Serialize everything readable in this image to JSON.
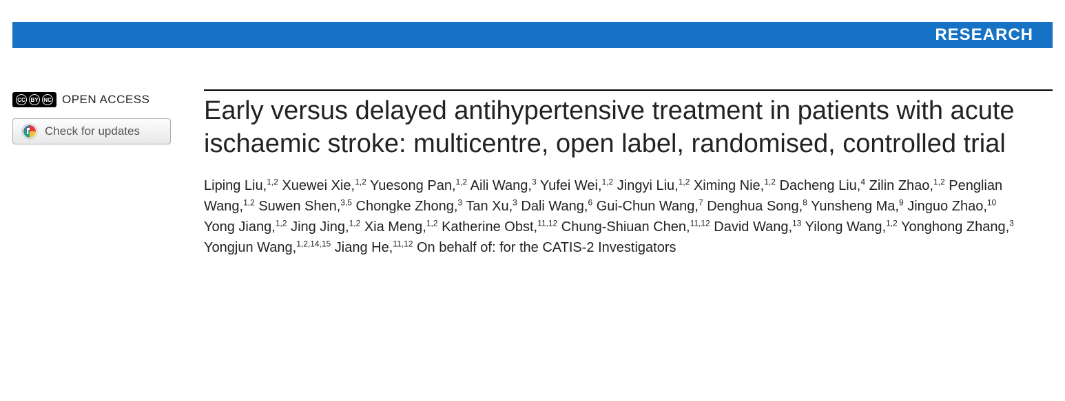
{
  "banner": {
    "label": "RESEARCH",
    "bg_color": "#1572c4",
    "text_color": "#ffffff"
  },
  "sidebar": {
    "open_access_label": "OPEN ACCESS",
    "cc_symbols": [
      "CC",
      "BY",
      "NC"
    ],
    "check_updates_label": "Check for updates"
  },
  "article": {
    "title": "Early versus delayed antihypertensive treatment in patients with acute ischaemic stroke: multicentre, open label, randomised, controlled trial",
    "authors": [
      {
        "name": "Liping Liu",
        "affil": "1,2"
      },
      {
        "name": "Xuewei Xie",
        "affil": "1,2"
      },
      {
        "name": "Yuesong Pan",
        "affil": "1,2"
      },
      {
        "name": "Aili Wang",
        "affil": "3"
      },
      {
        "name": "Yufei Wei",
        "affil": "1,2"
      },
      {
        "name": "Jingyi Liu",
        "affil": "1,2"
      },
      {
        "name": "Ximing Nie",
        "affil": "1,2"
      },
      {
        "name": "Dacheng Liu",
        "affil": "4"
      },
      {
        "name": "Zilin Zhao",
        "affil": "1,2"
      },
      {
        "name": "Penglian Wang",
        "affil": "1,2"
      },
      {
        "name": "Suwen Shen",
        "affil": "3,5"
      },
      {
        "name": "Chongke Zhong",
        "affil": "3"
      },
      {
        "name": "Tan Xu",
        "affil": "3"
      },
      {
        "name": "Dali Wang",
        "affil": "6"
      },
      {
        "name": "Gui-Chun Wang",
        "affil": "7"
      },
      {
        "name": "Denghua Song",
        "affil": "8"
      },
      {
        "name": "Yunsheng Ma",
        "affil": "9"
      },
      {
        "name": "Jinguo Zhao",
        "affil": "10"
      },
      {
        "name": "Yong Jiang",
        "affil": "1,2"
      },
      {
        "name": "Jing Jing",
        "affil": "1,2"
      },
      {
        "name": "Xia Meng",
        "affil": "1,2"
      },
      {
        "name": "Katherine Obst",
        "affil": "11,12"
      },
      {
        "name": "Chung-Shiuan Chen",
        "affil": "11,12"
      },
      {
        "name": "David Wang",
        "affil": "13"
      },
      {
        "name": "Yilong Wang",
        "affil": "1,2"
      },
      {
        "name": "Yonghong Zhang",
        "affil": "3"
      },
      {
        "name": "Yongjun Wang",
        "affil": "1,2,14,15"
      },
      {
        "name": "Jiang He",
        "affil": "11,12"
      }
    ],
    "on_behalf": "On behalf of: for the CATIS-2 Investigators"
  },
  "style": {
    "title_fontsize": 38,
    "author_fontsize": 20,
    "title_color": "#222222",
    "rule_color": "#000000"
  }
}
